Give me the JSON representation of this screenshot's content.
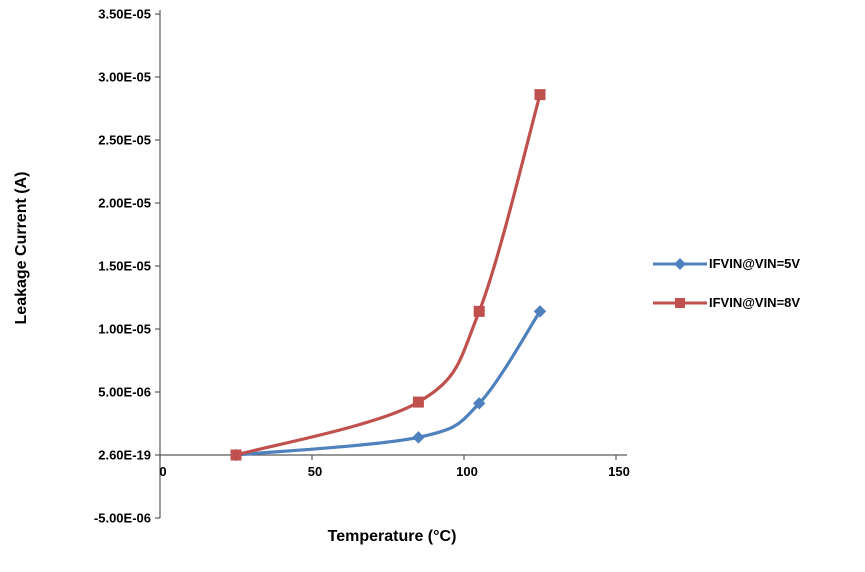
{
  "chart_data": {
    "type": "line",
    "title": "",
    "xlabel": "Temperature (°C)",
    "ylabel": "Leakage Current (A)",
    "x": [
      25,
      85,
      105,
      125
    ],
    "series": [
      {
        "name": "IFVIN@VIN=5V",
        "color": "#4f81bd",
        "marker": "diamond",
        "values": [
          2.6e-19,
          1.4e-06,
          4.1e-06,
          1.14e-05
        ]
      },
      {
        "name": "IFVIN@VIN=8V",
        "color": "#c0504d",
        "marker": "square",
        "values": [
          2.6e-19,
          4.2e-06,
          1.14e-05,
          2.86e-05
        ]
      }
    ],
    "xlim": [
      0,
      150
    ],
    "ylim": [
      -5e-06,
      3.5e-05
    ],
    "xticks": [
      0,
      50,
      100,
      150
    ],
    "xtick_labels": [
      "0",
      "50",
      "100",
      "150"
    ],
    "ytick_values": [
      -5e-06,
      0,
      5e-06,
      1e-05,
      1.5e-05,
      2e-05,
      2.5e-05,
      3e-05,
      3.5e-05
    ],
    "ytick_labels": [
      "-5.00E-06",
      "2.60E-19",
      "5.00E-06",
      "1.00E-05",
      "1.50E-05",
      "2.00E-05",
      "2.50E-05",
      "3.00E-05",
      "3.50E-05"
    ],
    "grid": false,
    "smooth": true,
    "legend_position": "right",
    "axis_color": "#595959"
  }
}
